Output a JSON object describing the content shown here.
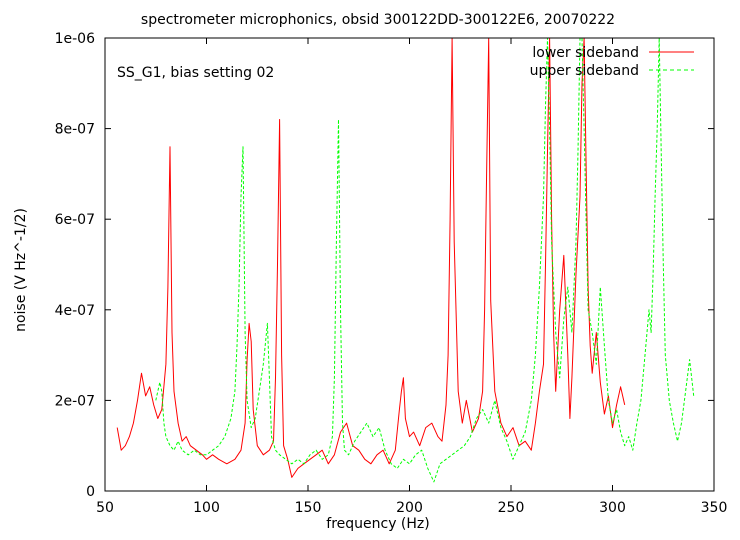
{
  "chart_data": {
    "type": "line",
    "title": "spectrometer microphonics, obsid 300122DD-300122E6, 20070222",
    "annotation": "SS_G1, bias setting 02",
    "xlabel": "frequency (Hz)",
    "ylabel": "noise (V Hz^-1/2)",
    "xlim": [
      50,
      350
    ],
    "ylim": [
      0,
      1e-06
    ],
    "xticks": [
      50,
      100,
      150,
      200,
      250,
      300,
      350
    ],
    "xtick_labels": [
      "50",
      "100",
      "150",
      "200",
      "250",
      "300",
      "350"
    ],
    "yticks": [
      0,
      2e-07,
      4e-07,
      6e-07,
      8e-07,
      1e-06
    ],
    "ytick_labels": [
      "0",
      "2e-07",
      "4e-07",
      "6e-07",
      "8e-07",
      "1e-06"
    ],
    "grid": false,
    "legend": "top-right",
    "series": [
      {
        "name": "lower sideband",
        "color": "#ff0000",
        "style": "solid",
        "x": [
          56,
          58,
          60,
          62,
          64,
          66,
          68,
          70,
          72,
          74,
          76,
          78,
          80,
          81,
          82,
          83,
          84,
          86,
          88,
          90,
          92,
          95,
          98,
          100,
          103,
          106,
          110,
          114,
          117,
          119,
          120,
          121,
          122,
          123,
          125,
          128,
          131,
          133,
          134,
          135,
          136,
          137,
          138,
          140,
          142,
          145,
          148,
          151,
          154,
          157,
          160,
          163,
          166,
          169,
          172,
          175,
          178,
          181,
          184,
          187,
          190,
          193,
          195,
          196,
          197,
          198,
          200,
          202,
          205,
          208,
          211,
          214,
          216,
          218,
          219,
          220,
          221,
          222,
          224,
          226,
          228,
          231,
          234,
          236,
          237,
          238,
          239,
          240,
          242,
          245,
          248,
          251,
          254,
          257,
          260,
          262,
          264,
          266,
          267,
          268,
          269,
          270,
          271,
          272,
          274,
          276,
          278,
          279,
          280,
          282,
          284,
          285,
          286,
          287,
          288,
          289,
          290,
          292,
          294,
          296,
          298,
          300,
          302,
          304,
          306
        ],
        "y": [
          1.4e-07,
          9e-08,
          1e-07,
          1.2e-07,
          1.5e-07,
          2e-07,
          2.6e-07,
          2.1e-07,
          2.3e-07,
          1.9e-07,
          1.6e-07,
          1.8e-07,
          2.8e-07,
          4.5e-07,
          7.6e-07,
          3.5e-07,
          2.2e-07,
          1.5e-07,
          1.1e-07,
          1.2e-07,
          1e-07,
          9e-08,
          8e-08,
          7e-08,
          8e-08,
          7e-08,
          6e-08,
          7e-08,
          9e-08,
          1.5e-07,
          2.9e-07,
          3.7e-07,
          3.3e-07,
          1.8e-07,
          1e-07,
          8e-08,
          9e-08,
          1.1e-07,
          2.5e-07,
          5e-07,
          8.2e-07,
          3e-07,
          1e-07,
          7e-08,
          3e-08,
          5e-08,
          6e-08,
          7e-08,
          8e-08,
          9e-08,
          6e-08,
          8e-08,
          1.3e-07,
          1.5e-07,
          1e-07,
          9e-08,
          7e-08,
          6e-08,
          8e-08,
          9e-08,
          6e-08,
          9e-08,
          1.8e-07,
          2.2e-07,
          2.5e-07,
          1.6e-07,
          1.2e-07,
          1.3e-07,
          1e-07,
          1.4e-07,
          1.5e-07,
          1.2e-07,
          1.1e-07,
          1.9e-07,
          3e-07,
          6e-07,
          1e-06,
          5.5e-07,
          2.2e-07,
          1.5e-07,
          2e-07,
          1.3e-07,
          1.6e-07,
          2.2e-07,
          4e-07,
          7e-07,
          1e-06,
          4.2e-07,
          2.2e-07,
          1.5e-07,
          1.2e-07,
          1.4e-07,
          1e-07,
          1.1e-07,
          9e-08,
          1.5e-07,
          2.2e-07,
          2.8e-07,
          5e-07,
          7.5e-07,
          1e-06,
          6e-07,
          3.5e-07,
          2.2e-07,
          4e-07,
          5.2e-07,
          3e-07,
          1.6e-07,
          2.5e-07,
          4.8e-07,
          6.5e-07,
          9e-07,
          1e-06,
          7.2e-07,
          4.5e-07,
          3.2e-07,
          2.6e-07,
          3.5e-07,
          2.4e-07,
          1.7e-07,
          2.1e-07,
          1.4e-07,
          1.9e-07,
          2.3e-07,
          1.9e-07
        ]
      },
      {
        "name": "upper sideband",
        "color": "#00ff00",
        "style": "dashed",
        "x": [
          75,
          77,
          78,
          79,
          80,
          82,
          84,
          86,
          88,
          91,
          94,
          97,
          100,
          103,
          106,
          109,
          112,
          114,
          115,
          116,
          117,
          118,
          119,
          120,
          122,
          124,
          126,
          128,
          130,
          131,
          132,
          134,
          136,
          139,
          142,
          145,
          148,
          151,
          154,
          157,
          160,
          162,
          163,
          164,
          165,
          166,
          167,
          168,
          170,
          173,
          176,
          179,
          182,
          185,
          188,
          191,
          194,
          197,
          200,
          203,
          206,
          209,
          212,
          215,
          218,
          221,
          224,
          227,
          230,
          233,
          236,
          239,
          242,
          245,
          248,
          251,
          254,
          257,
          260,
          262,
          264,
          266,
          267,
          268,
          269,
          270,
          272,
          274,
          276,
          278,
          280,
          282,
          283,
          284,
          285,
          286,
          287,
          288,
          290,
          292,
          294,
          296,
          298,
          300,
          302,
          304,
          306,
          308,
          310,
          312,
          314,
          316,
          318,
          319,
          320,
          321,
          322,
          323,
          324,
          325,
          326,
          328,
          330,
          332,
          334,
          336,
          338,
          340
        ],
        "y": [
          2e-07,
          2.4e-07,
          2.2e-07,
          1.5e-07,
          1.2e-07,
          1e-07,
          9e-08,
          1.1e-07,
          9e-08,
          8e-08,
          9e-08,
          8e-08,
          8e-08,
          9e-08,
          1e-07,
          1.2e-07,
          1.6e-07,
          2.2e-07,
          3.2e-07,
          4.5e-07,
          6.5e-07,
          7.6e-07,
          3.5e-07,
          2e-07,
          1.4e-07,
          1.6e-07,
          2.2e-07,
          2.8e-07,
          3.7e-07,
          2.5e-07,
          1.2e-07,
          9e-08,
          8e-08,
          7e-08,
          6e-08,
          7e-08,
          6e-08,
          8e-08,
          9e-08,
          7e-08,
          8e-08,
          1.2e-07,
          2.5e-07,
          5.5e-07,
          8.2e-07,
          4e-07,
          1.5e-07,
          9e-08,
          8e-08,
          1.1e-07,
          1.3e-07,
          1.5e-07,
          1.2e-07,
          1.4e-07,
          9e-08,
          6e-08,
          5e-08,
          7e-08,
          6e-08,
          8e-08,
          9e-08,
          5e-08,
          2e-08,
          6e-08,
          7e-08,
          8e-08,
          9e-08,
          1e-07,
          1.2e-07,
          1.6e-07,
          1.8e-07,
          1.5e-07,
          2e-07,
          1.4e-07,
          1.1e-07,
          7e-08,
          1e-07,
          1.3e-07,
          2e-07,
          3e-07,
          4.5e-07,
          6.5e-07,
          8.5e-07,
          1e-06,
          8e-07,
          5.5e-07,
          3.5e-07,
          2.5e-07,
          3.8e-07,
          4.5e-07,
          3.5e-07,
          5.5e-07,
          7.5e-07,
          1e-06,
          1e-06,
          8e-07,
          6e-07,
          4e-07,
          3.5e-07,
          2.8e-07,
          4.5e-07,
          3.2e-07,
          2e-07,
          1.5e-07,
          1.8e-07,
          1.3e-07,
          1e-07,
          1.2e-07,
          9e-08,
          1.5e-07,
          2e-07,
          3e-07,
          4e-07,
          3.5e-07,
          4.8e-07,
          6.5e-07,
          8e-07,
          1e-06,
          7.5e-07,
          5e-07,
          3e-07,
          2e-07,
          1.5e-07,
          1.1e-07,
          1.5e-07,
          2.2e-07,
          2.9e-07,
          2.1e-07
        ]
      }
    ]
  }
}
